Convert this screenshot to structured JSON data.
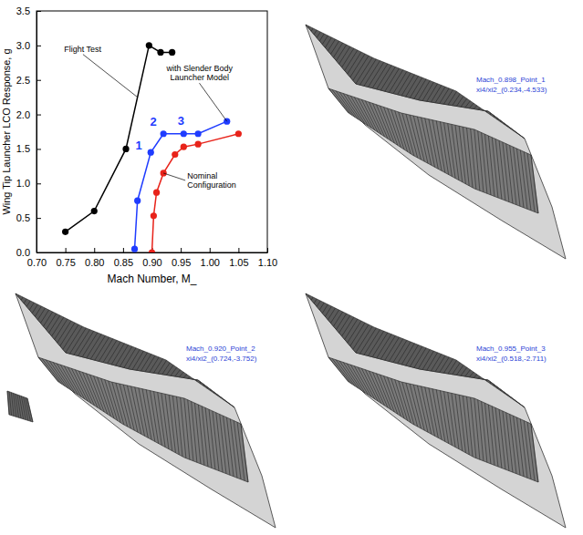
{
  "chart_data": {
    "type": "line",
    "xlabel": "Mach Number, M_",
    "ylabel": "Wing Tip Launcher LCO Response, g",
    "xlim": [
      0.7,
      1.1
    ],
    "xticks": [
      {
        "value": 0.7,
        "label": "0.70"
      },
      0.75,
      {
        "value": 0.8,
        "label": "0.80"
      },
      0.85,
      {
        "value": 0.9,
        "label": "0.90"
      },
      0.95,
      {
        "value": 1.0,
        "label": "1.00"
      },
      1.05,
      {
        "value": 1.1,
        "label": "1.10"
      }
    ],
    "ylim": [
      0,
      3.5
    ],
    "yticks": [
      {
        "value": 0,
        "label": "0.0"
      },
      0.5,
      {
        "value": 1,
        "label": "1.0"
      },
      1.5,
      {
        "value": 2,
        "label": "2.0"
      },
      2.5,
      {
        "value": 3,
        "label": "3.0"
      },
      3.5
    ],
    "series": [
      {
        "name": "Flight Test",
        "color": "#000000",
        "marker": "circle",
        "x": [
          0.75,
          0.8,
          0.855,
          0.895,
          0.915,
          0.935
        ],
        "values": [
          0.3,
          0.6,
          1.5,
          3.0,
          2.9,
          2.9
        ]
      },
      {
        "name": "with Slender Body Launcher Model",
        "color": "#1f3cff",
        "marker": "circle",
        "x": [
          0.87,
          0.875,
          0.898,
          0.92,
          0.955,
          0.98,
          1.03
        ],
        "values": [
          0.05,
          0.75,
          1.45,
          1.72,
          1.72,
          1.72,
          1.9
        ]
      },
      {
        "name": "Nominal Configuration",
        "color": "#e8231a",
        "marker": "circle",
        "x": [
          0.9,
          0.903,
          0.908,
          0.92,
          0.94,
          0.955,
          0.98,
          1.05
        ],
        "values": [
          0.0,
          0.53,
          0.87,
          1.15,
          1.42,
          1.53,
          1.57,
          1.72
        ]
      }
    ],
    "annotations": [
      {
        "text": "1",
        "x": 0.898,
        "y": 1.45
      },
      {
        "text": "2",
        "x": 0.92,
        "y": 1.72
      },
      {
        "text": "3",
        "x": 0.955,
        "y": 1.72
      }
    ]
  },
  "panels": [
    {
      "title": "Mach_0.898_Point_1",
      "subtitle": "xi4/xi2_(0.234,-4.533)"
    },
    {
      "title": "Mach_0.920_Point_2",
      "subtitle": "xi4/xi2_(0.724,-3.752)"
    },
    {
      "title": "Mach_0.955_Point_3",
      "subtitle": "xi4/xi2_(0.518,-2.711)"
    }
  ]
}
